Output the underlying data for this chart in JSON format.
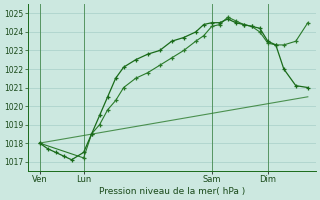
{
  "background_color": "#cce8e0",
  "plot_bg_color": "#cce8e0",
  "line_color_dark": "#1a6b1a",
  "line_color_mid": "#2a7a2a",
  "grid_color": "#a8cfc8",
  "text_color": "#1a4a1a",
  "xlabel": "Pression niveau de la mer( hPa )",
  "ylim": [
    1016.5,
    1025.5
  ],
  "yticks": [
    1017,
    1018,
    1019,
    1020,
    1021,
    1022,
    1023,
    1024,
    1025
  ],
  "xlim": [
    0,
    72
  ],
  "xtick_labels": [
    "Ven",
    "Lun",
    "Sam",
    "Dim"
  ],
  "xtick_positions": [
    3,
    14,
    46,
    60
  ],
  "vline_positions": [
    3,
    14,
    46,
    60
  ],
  "series1_x": [
    3,
    5,
    7,
    9,
    11,
    14,
    16,
    18,
    20,
    22,
    24,
    27,
    30,
    33,
    36,
    39,
    42,
    44,
    46,
    48,
    50,
    52,
    54,
    56,
    58,
    60,
    62,
    64,
    67,
    70
  ],
  "series1_y": [
    1018.0,
    1017.7,
    1017.5,
    1017.3,
    1017.1,
    1017.5,
    1018.5,
    1019.5,
    1020.5,
    1021.5,
    1022.1,
    1022.5,
    1022.8,
    1023.0,
    1023.5,
    1023.7,
    1024.0,
    1024.4,
    1024.5,
    1024.5,
    1024.7,
    1024.5,
    1024.4,
    1024.3,
    1024.2,
    1023.5,
    1023.3,
    1022.0,
    1021.1,
    1021.0
  ],
  "series2_x": [
    3,
    14,
    16,
    18,
    20,
    22,
    24,
    27,
    30,
    33,
    36,
    39,
    42,
    44,
    46,
    48,
    50,
    52,
    54,
    56,
    58,
    60,
    62,
    64,
    67,
    70
  ],
  "series2_y": [
    1018.0,
    1017.2,
    1018.5,
    1019.0,
    1019.8,
    1020.3,
    1021.0,
    1021.5,
    1021.8,
    1022.2,
    1022.6,
    1023.0,
    1023.5,
    1023.8,
    1024.3,
    1024.4,
    1024.8,
    1024.6,
    1024.4,
    1024.3,
    1024.0,
    1023.4,
    1023.3,
    1023.3,
    1023.5,
    1024.5
  ],
  "series3_x": [
    3,
    70
  ],
  "series3_y": [
    1018.0,
    1020.5
  ]
}
